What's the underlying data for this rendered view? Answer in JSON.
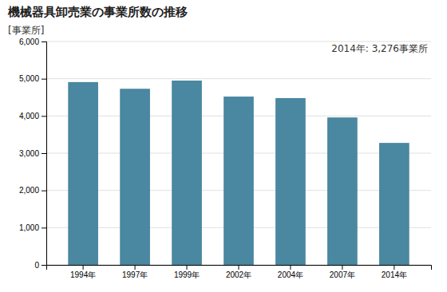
{
  "chart_data": {
    "type": "bar",
    "title": "機械器具卸売業の事業所数の推移",
    "ylabel": "[事業所]",
    "annotation": "2014年: 3,276事業所",
    "categories": [
      "1994年",
      "1997年",
      "1999年",
      "2002年",
      "2004年",
      "2007年",
      "2014年"
    ],
    "values": [
      4910,
      4730,
      4950,
      4520,
      4480,
      3960,
      3276
    ],
    "color": "#4a87a0",
    "ylim": [
      0,
      6000
    ],
    "yticks": [
      0,
      {
        "value": 1000,
        "label": "1,000"
      },
      {
        "value": 2000,
        "label": "2,000"
      },
      {
        "value": 3000,
        "label": "3,000"
      },
      {
        "value": 4000,
        "label": "4,000"
      },
      {
        "value": 5000,
        "label": "5,000"
      },
      {
        "value": 6000,
        "label": "6,000"
      }
    ],
    "grid": true
  }
}
